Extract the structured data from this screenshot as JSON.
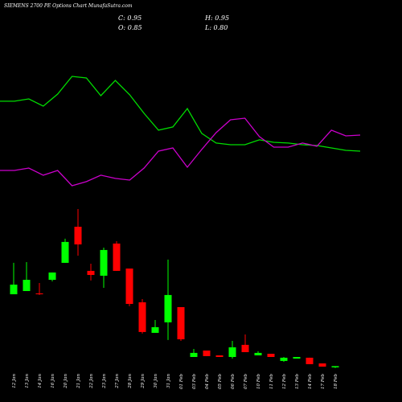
{
  "chart_data": {
    "type": "candlestick",
    "title": "SIEMENS 2700 PE Options Chart MunafaSutra.com",
    "annotations": [
      "C: 0.95",
      "H: 0.95",
      "O: 0.85",
      "L: 0.80"
    ],
    "categories": [
      "12 Jan",
      "13 Jan",
      "14 Jan",
      "16 Jan",
      "20 Jan",
      "21 Jan",
      "22 Jan",
      "23 Jan",
      "27 Jan",
      "28 Jan",
      "29 Jan",
      "30 Jan",
      "31 Jan",
      "01 Feb",
      "03 Feb",
      "04 Feb",
      "05 Feb",
      "06 Feb",
      "07 Feb",
      "10 Feb",
      "11 Feb",
      "12 Feb",
      "13 Feb",
      "14 Feb",
      "17 Feb",
      "18 Feb"
    ],
    "open": [
      6.76,
      7.02,
      6.83,
      7.93,
      9.3,
      12.22,
      8.65,
      8.26,
      10.86,
      8.84,
      6.11,
      3.64,
      4.49,
      5.72,
      1.69,
      2.21,
      1.82,
      1.69,
      2.67,
      1.82,
      1.95,
      1.37,
      1.56,
      1.63,
      1.17,
      0.85
    ],
    "high": [
      9.3,
      9.36,
      7.67,
      8.52,
      11.25,
      13.65,
      9.23,
      10.53,
      11.05,
      8.84,
      6.37,
      4.68,
      9.56,
      5.72,
      2.34,
      2.21,
      1.82,
      2.99,
      3.51,
      2.15,
      1.95,
      1.69,
      1.69,
      1.63,
      1.17,
      0.95
    ],
    "low": [
      6.76,
      7.02,
      6.7,
      7.8,
      9.3,
      9.88,
      7.87,
      7.28,
      8.65,
      5.79,
      3.58,
      3.64,
      3.06,
      2.99,
      1.69,
      1.76,
      1.69,
      1.56,
      2.08,
      1.82,
      1.69,
      1.3,
      1.56,
      1.11,
      0.91,
      0.8
    ],
    "close": [
      7.54,
      7.93,
      6.76,
      8.52,
      10.99,
      10.79,
      8.32,
      10.34,
      8.65,
      5.98,
      3.71,
      4.1,
      6.7,
      3.12,
      2.02,
      1.76,
      1.69,
      2.47,
      2.08,
      2.02,
      1.69,
      1.63,
      1.69,
      1.11,
      0.91,
      0.95
    ],
    "up_color": "#00ff00",
    "down_color": "#ff0000",
    "ylim": [
      0,
      14
    ],
    "indicator": {
      "ylim": [
        0,
        100
      ],
      "series": [
        {
          "color": "#00dd00",
          "values": [
            71.3,
            71.3,
            73.1,
            67.5,
            76.9,
            90.6,
            89.4,
            75.6,
            87.5,
            76.3,
            61.9,
            48.8,
            51.3,
            65.6,
            46.3,
            38.8,
            37.5,
            37.5,
            41.3,
            39.4,
            38.8,
            37.5,
            36.9,
            35.0,
            33.1,
            32.5
          ]
        },
        {
          "color": "#cc00cc",
          "values": [
            17.5,
            17.5,
            19.4,
            13.8,
            17.5,
            5.6,
            8.8,
            13.8,
            11.3,
            10.0,
            19.4,
            32.5,
            35.0,
            20.0,
            33.8,
            46.9,
            56.9,
            58.1,
            43.8,
            35.6,
            35.6,
            38.8,
            36.3,
            48.8,
            44.4,
            45.0
          ]
        }
      ]
    }
  }
}
